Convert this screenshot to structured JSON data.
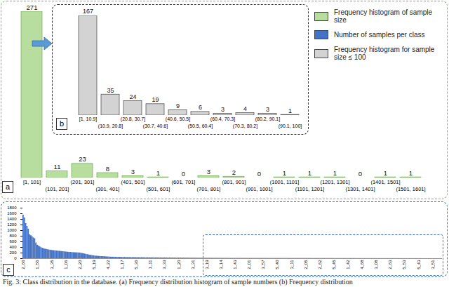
{
  "caption": "Fig. 3: Class distribution in the database. (a) Frequency distribution histogram of sample numbers (b) Frequency distribution",
  "chart_data": [
    {
      "type": "bar",
      "panel": "a",
      "categories": [
        "[1, 101]",
        "(101, 201]",
        "(201, 301]",
        "(301, 401]",
        "(401, 501]",
        "(501, 601]",
        "(601, 701]",
        "(701, 801]",
        "(801, 901]",
        "(901, 1001]",
        "(1001, 1101]",
        "(1101, 1201]",
        "(1201, 1301]",
        "(1301, 1401]",
        "(1401, 1501]",
        "(1501, 1601]"
      ],
      "series": [
        {
          "name": "Frequency histogram of sample size",
          "color": "#b8de9f",
          "values": [
            271,
            11,
            23,
            8,
            3,
            1,
            0,
            3,
            2,
            0,
            1,
            1,
            1,
            0,
            1,
            1
          ]
        }
      ],
      "data_labels": true,
      "tick_labels": "x",
      "legend": "top-right"
    },
    {
      "type": "bar",
      "panel": "c",
      "categories": [
        "2_66",
        null,
        null,
        null,
        null,
        null,
        null,
        null,
        null,
        null,
        null,
        "1_56",
        null,
        null,
        null,
        null,
        null,
        null,
        null,
        null,
        null,
        null,
        "3_35",
        null,
        null,
        null,
        null,
        null,
        null,
        null,
        null,
        null,
        null,
        "1_06",
        null,
        null,
        null,
        null,
        null,
        null,
        null,
        null,
        null,
        null,
        "2_20",
        null,
        null,
        null,
        null,
        null,
        null,
        null,
        null,
        null,
        null,
        "5_19",
        null,
        null,
        null,
        null,
        null,
        null,
        null,
        null,
        null,
        null,
        "4_22",
        null,
        null,
        null,
        null,
        null,
        null,
        null,
        null,
        null,
        null,
        "1_17",
        null,
        null,
        null,
        null,
        null,
        null,
        null,
        null,
        null,
        null,
        "5_36",
        null,
        null,
        null,
        null,
        null,
        null,
        null,
        null,
        null,
        null,
        "1_11",
        null,
        null,
        null,
        null,
        null,
        null,
        null,
        null,
        null,
        null,
        "3_33",
        null,
        null,
        null,
        null,
        null,
        null,
        null,
        null,
        null,
        null,
        "1_20",
        null,
        null,
        null,
        null,
        null,
        null,
        null,
        null,
        null,
        null,
        "3_31",
        null,
        null,
        null,
        null,
        null,
        null,
        null,
        null,
        null,
        null,
        "3_19",
        null,
        null,
        null,
        null,
        null,
        null,
        null,
        null,
        null,
        null,
        "3_14",
        null,
        null,
        null,
        null,
        null,
        null,
        null,
        null,
        null,
        null,
        "1_43",
        null,
        null,
        null,
        null,
        null,
        null,
        null,
        null,
        null,
        null,
        "2_01",
        null,
        null,
        null,
        null,
        null,
        null,
        null,
        null,
        null,
        null,
        "3_57",
        null,
        null,
        null,
        null,
        null,
        null,
        null,
        null,
        null,
        null,
        "5_40",
        null,
        null,
        null,
        null,
        null,
        null,
        null,
        null,
        null,
        null,
        "3_11",
        null,
        null,
        null,
        null,
        null,
        null,
        null,
        null,
        null,
        null,
        "2_05",
        null,
        null,
        null,
        null,
        null,
        null,
        null,
        null,
        null,
        null,
        "2_62",
        null,
        null,
        null,
        null,
        null,
        null,
        null,
        null,
        null,
        null,
        "5_45",
        null,
        null,
        null,
        null,
        null,
        null,
        null,
        null,
        null,
        null,
        "1_42",
        null,
        null,
        null,
        null,
        null,
        null,
        null,
        null,
        null,
        null,
        "4_68",
        null,
        null,
        null,
        null,
        null,
        null,
        null,
        null,
        null,
        null,
        "3_08",
        null,
        null,
        null,
        null,
        null,
        null,
        null,
        null,
        null,
        null,
        "2_63",
        null,
        null,
        null,
        null,
        null,
        null,
        null,
        null,
        null,
        null,
        "5_53",
        null,
        null,
        null,
        null,
        null,
        null,
        null,
        null,
        null,
        null,
        "5_43",
        null,
        null,
        null,
        null,
        null,
        null,
        null,
        null,
        null,
        null,
        "3_51",
        null,
        null,
        null,
        null,
        null,
        null,
        null
      ],
      "series": [
        {
          "name": "Number of samples per class",
          "color": "#4472c4",
          "values": [
            1550,
            1450,
            1250,
            1150,
            1050,
            850,
            820,
            780,
            740,
            710,
            560,
            480,
            450,
            420,
            390,
            370,
            355,
            340,
            330,
            320,
            310,
            305,
            295,
            290,
            285,
            280,
            275,
            270,
            265,
            260,
            255,
            250,
            245,
            240,
            235,
            230,
            225,
            222,
            218,
            215,
            212,
            210,
            208,
            205,
            203,
            195,
            185,
            175,
            165,
            155,
            145,
            135,
            125,
            115,
            108,
            103,
            95,
            88,
            85,
            82,
            78,
            75,
            73,
            71,
            67,
            64,
            61,
            58,
            56,
            54,
            53,
            52,
            51,
            49,
            48,
            47,
            46,
            45,
            44,
            43,
            42,
            41,
            40,
            40,
            39,
            39,
            38,
            37,
            37,
            36,
            35,
            35,
            34,
            34,
            33,
            33,
            32,
            32,
            32,
            31,
            31,
            30,
            30,
            29,
            29,
            28,
            28,
            27,
            27,
            26,
            26,
            25,
            25,
            24,
            24,
            24,
            23,
            23,
            23,
            22,
            22,
            22,
            21,
            21,
            21,
            20,
            20,
            20,
            19,
            19,
            19,
            18,
            18,
            18,
            17,
            17,
            17,
            16,
            16,
            16,
            15,
            15,
            15,
            15,
            14,
            14,
            14,
            14,
            13,
            13,
            13,
            13,
            12,
            12,
            12,
            12,
            11,
            11,
            11,
            11,
            10,
            10,
            10,
            10,
            10,
            10,
            10,
            10,
            10,
            10,
            10,
            10,
            10,
            10,
            10,
            9,
            9,
            9,
            9,
            9,
            9,
            9,
            9,
            9,
            9,
            9,
            9,
            9,
            9,
            9,
            9,
            8,
            8,
            8,
            8,
            8,
            8,
            8,
            8,
            8,
            8,
            8,
            8,
            8,
            8,
            8,
            8,
            8,
            7,
            7,
            7,
            7,
            7,
            7,
            7,
            7,
            7,
            7,
            7,
            7,
            7,
            7,
            7,
            7,
            7,
            6,
            6,
            6,
            6,
            6,
            6,
            6,
            6,
            6,
            6,
            6,
            6,
            6,
            6,
            6,
            6,
            6,
            5,
            5,
            5,
            5,
            5,
            5,
            5,
            5,
            5,
            5,
            5,
            5,
            5,
            5,
            5,
            5,
            5,
            4,
            4,
            4,
            4,
            4,
            4,
            4,
            4,
            4,
            4,
            4,
            4,
            4,
            4,
            4,
            4,
            4,
            3,
            3,
            3,
            3,
            3,
            3,
            3,
            3,
            3,
            3,
            3,
            3,
            3,
            3,
            3,
            3,
            3,
            2,
            2,
            2,
            2,
            2,
            2,
            2,
            2,
            2,
            2,
            2,
            2,
            2,
            2,
            2,
            2,
            2,
            1,
            1,
            1,
            1,
            1,
            1,
            1,
            1,
            1,
            1,
            1,
            1,
            1,
            1,
            1,
            1,
            1
          ]
        }
      ],
      "ylim": [
        0,
        1800
      ],
      "yticks": [
        0,
        200,
        400,
        600,
        800,
        1000,
        1200,
        1400,
        1600,
        1800
      ],
      "grid": false
    },
    {
      "type": "bar",
      "panel": "b",
      "categories": [
        "[1, 10.9]",
        "(10.9, 20.8]",
        "(20.8, 30.7]",
        "(30.7, 40.6]",
        "(40.6, 50.5]",
        "(50.5, 60.4]",
        "(60.4, 70.3]",
        "(70.3, 80.2]",
        "(80.2, 90.1]",
        "(90.1, 100]"
      ],
      "series": [
        {
          "name": "Frequency histogram for sample size ≤ 100",
          "color": "#d3d3d3",
          "values": [
            167,
            35,
            24,
            19,
            9,
            6,
            3,
            4,
            3,
            1
          ]
        }
      ],
      "data_labels": true,
      "tick_labels": "x"
    }
  ]
}
